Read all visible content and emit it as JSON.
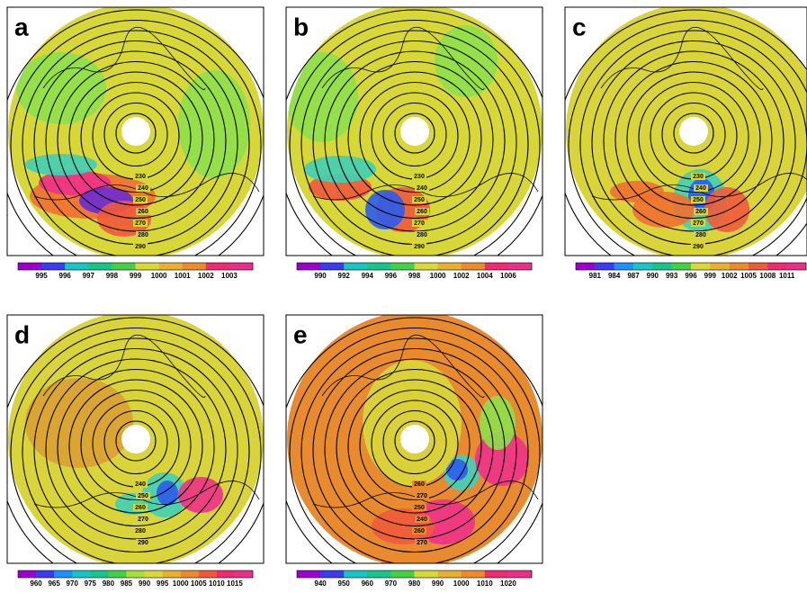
{
  "panels": [
    {
      "label": "a",
      "colorbar": [
        "995",
        "996",
        "997",
        "998",
        "999",
        "1000",
        "1001",
        "1002",
        "1003"
      ],
      "contour_labels": [
        "230",
        "240",
        "250",
        "260",
        "270",
        "280",
        "290"
      ]
    },
    {
      "label": "b",
      "colorbar": [
        "990",
        "992",
        "994",
        "996",
        "998",
        "1000",
        "1002",
        "1004",
        "1006"
      ],
      "contour_labels": [
        "230",
        "240",
        "250",
        "260",
        "270",
        "280",
        "290"
      ]
    },
    {
      "label": "c",
      "colorbar": [
        "981",
        "984",
        "987",
        "990",
        "993",
        "996",
        "999",
        "1002",
        "1005",
        "1008",
        "1011"
      ],
      "contour_labels": [
        "230",
        "240",
        "250",
        "260",
        "270",
        "280",
        "290"
      ]
    },
    {
      "label": "d",
      "colorbar": [
        "960",
        "965",
        "970",
        "975",
        "980",
        "985",
        "990",
        "995",
        "1000",
        "1005",
        "1010",
        "1015"
      ],
      "contour_labels": [
        "240",
        "250",
        "260",
        "270",
        "280",
        "290"
      ]
    },
    {
      "label": "e",
      "colorbar": [
        "940",
        "950",
        "960",
        "970",
        "980",
        "990",
        "1000",
        "1010",
        "1020"
      ],
      "contour_labels": [
        "260",
        "270",
        "250",
        "240",
        "260",
        "270"
      ]
    }
  ]
}
